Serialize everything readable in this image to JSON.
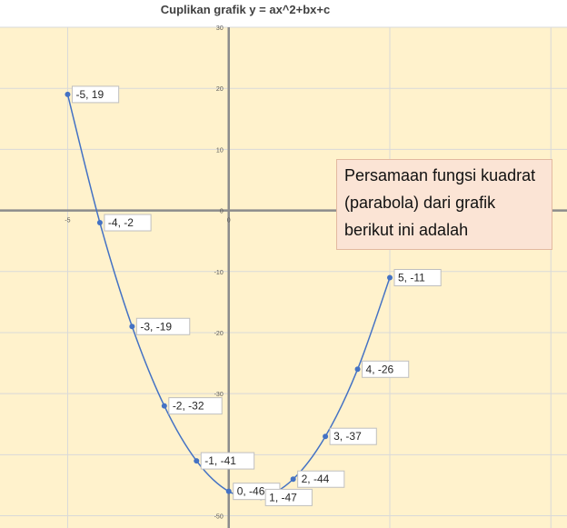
{
  "chart_data": {
    "type": "scatter",
    "title": "Cuplikan grafik y = ax^2+bx+c",
    "xlabel": "",
    "ylabel": "",
    "x": [
      -5,
      -4,
      -3,
      -2,
      -1,
      0,
      1,
      2,
      3,
      4,
      5
    ],
    "y": [
      19,
      -2,
      -19,
      -32,
      -41,
      -46,
      -47,
      -44,
      -37,
      -26,
      -11
    ],
    "point_labels": [
      "-5, 19",
      "-4, -2",
      "-3, -19",
      "-2, -32",
      "-1, -41",
      "0, -46",
      "1, -47",
      "2, -44",
      "3, -37",
      "4, -26",
      "5, -11"
    ],
    "x_ticks": [
      "-5",
      "0",
      "5"
    ],
    "y_ticks": [
      "30",
      "20",
      "10",
      "0",
      "-10",
      "-20",
      "-30",
      "-40",
      "-50"
    ],
    "xlim": [
      -7.1,
      10.5
    ],
    "ylim": [
      -52,
      30
    ],
    "grid": true,
    "smooth_line": true,
    "colors": {
      "background": "#fff2cc",
      "grid": "#d9d9d9",
      "axis": "#8c8c8c",
      "series": "#4472c4"
    }
  },
  "annotation": {
    "text": "Persamaan fungsi kuadrat (parabola) dari grafik berikut ini adalah"
  }
}
